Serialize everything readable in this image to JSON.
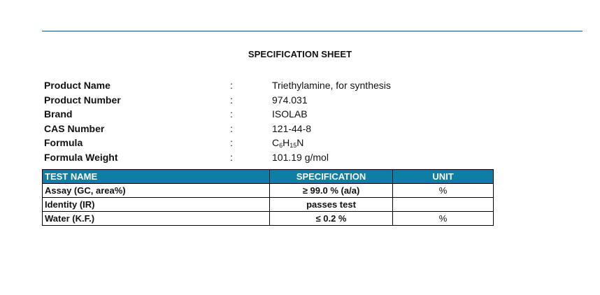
{
  "title": "SPECIFICATION SHEET",
  "info": [
    {
      "label": "Product Name",
      "value": "Triethylamine, for synthesis"
    },
    {
      "label": "Product Number",
      "value": "974.031"
    },
    {
      "label": "Brand",
      "value": "ISOLAB"
    },
    {
      "label": "CAS Number",
      "value": "121-44-8"
    },
    {
      "label": "Formula",
      "value": "C6H15N"
    },
    {
      "label": "Formula Weight",
      "value": "101.19 g/mol"
    }
  ],
  "formula_parts": {
    "c": "C",
    "c_sub": "6",
    "h": "H",
    "h_sub": "15",
    "n": "N"
  },
  "separator": ":",
  "table": {
    "header_color": "#0d7ea6",
    "headers": {
      "name": "TEST NAME",
      "spec": "SPECIFICATION",
      "unit": "UNIT"
    },
    "rows": [
      {
        "name": "Assay (GC, area%)",
        "spec": "≥ 99.0 % (a/a)",
        "unit": "%"
      },
      {
        "name": "Identity (IR)",
        "spec": "passes test",
        "unit": ""
      },
      {
        "name": "Water (K.F.)",
        "spec": "≤ 0.2 %",
        "unit": "%"
      }
    ]
  }
}
